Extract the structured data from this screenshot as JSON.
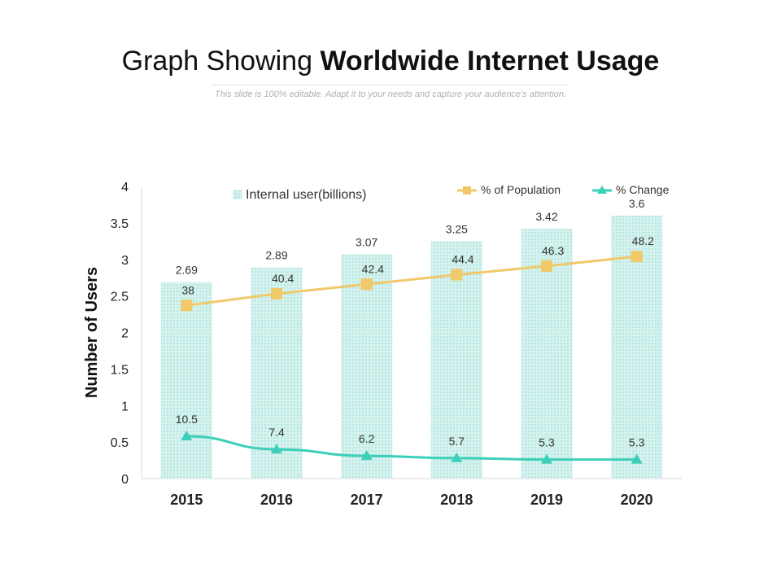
{
  "header": {
    "title_light": "Graph Showing ",
    "title_bold": "Worldwide Internet Usage",
    "subtitle": "This slide is 100% editable. Adapt it to your needs and capture your audience's attention."
  },
  "colors": {
    "bar_fill": "#d5f2ee",
    "bar_dot": "#8fd9cf",
    "population_line": "#f0c96a",
    "change_line": "#3ccfb9",
    "axis_text": "#222222",
    "label_text": "#333333"
  },
  "chart_data": {
    "type": "bar",
    "categories": [
      "2015",
      "2016",
      "2017",
      "2018",
      "2019",
      "2020"
    ],
    "ylabel": "Number of Users",
    "xlabel": "",
    "ylim": [
      0,
      4
    ],
    "yticks": [
      "0",
      "0.5",
      "1",
      "1.5",
      "2",
      "2.5",
      "3",
      "3.5",
      "4"
    ],
    "legend_position": "top",
    "series": [
      {
        "name": "Internal user(billions)",
        "kind": "bar",
        "values": [
          2.69,
          2.89,
          3.07,
          3.25,
          3.42,
          3.6
        ],
        "labels": [
          "2.69",
          "2.89",
          "3.07",
          "3.25",
          "3.42",
          "3.6"
        ]
      },
      {
        "name": "% of Population",
        "kind": "line",
        "marker": "square",
        "plotted": [
          2.37,
          2.53,
          2.66,
          2.79,
          2.91,
          3.04
        ],
        "labels": [
          "38",
          "40.4",
          "42.4",
          "44.4",
          "46.3",
          "48.2"
        ]
      },
      {
        "name": "% Change",
        "kind": "line",
        "marker": "triangle",
        "plotted": [
          0.58,
          0.4,
          0.31,
          0.28,
          0.26,
          0.26
        ],
        "labels": [
          "10.5",
          "7.4",
          "6.2",
          "5.7",
          "5.3",
          "5.3"
        ]
      }
    ]
  }
}
